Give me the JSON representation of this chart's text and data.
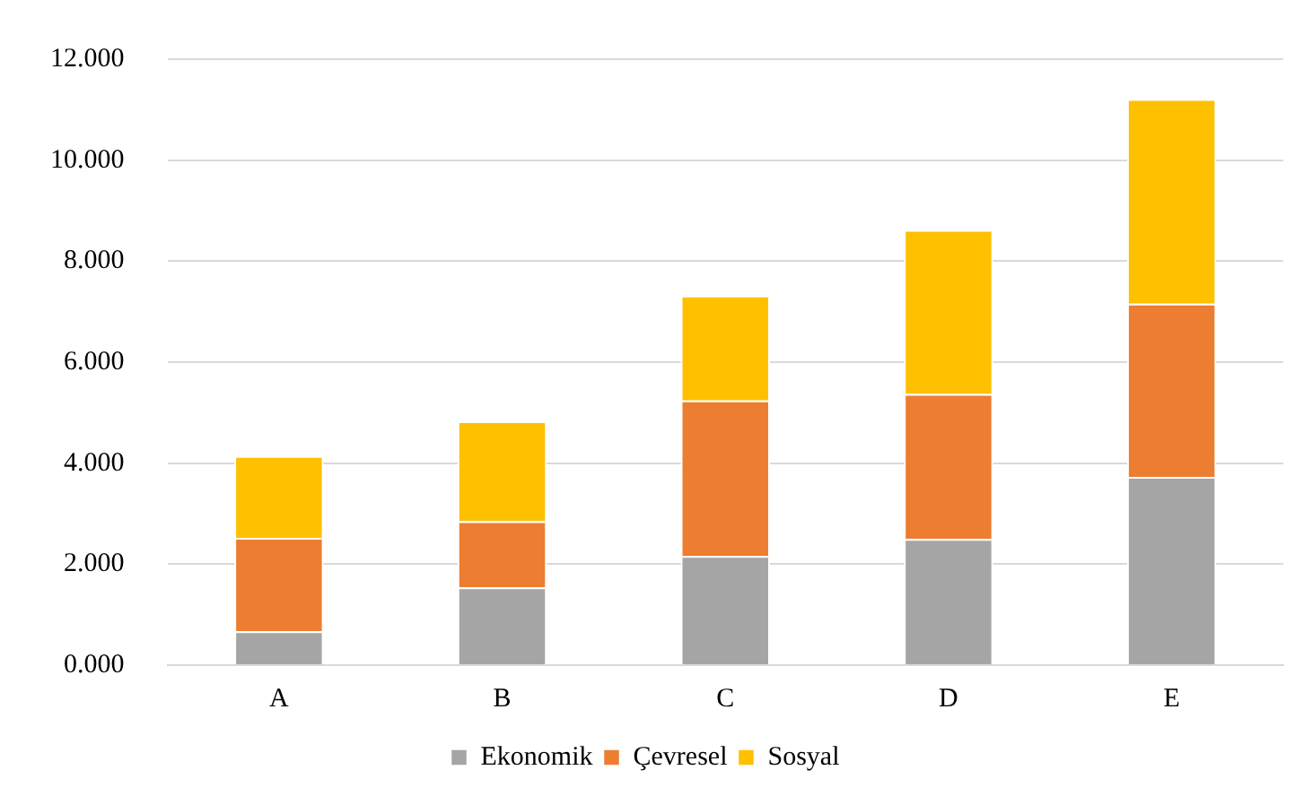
{
  "chart_data": {
    "type": "bar",
    "stacked": true,
    "categories": [
      "A",
      "B",
      "C",
      "D",
      "E"
    ],
    "series": [
      {
        "name": "Ekonomik",
        "color": "#a5a5a5",
        "values": [
          0.67,
          1.54,
          2.16,
          2.5,
          3.73
        ]
      },
      {
        "name": "Çevresel",
        "color": "#ed7d31",
        "values": [
          1.85,
          1.31,
          3.08,
          2.87,
          3.43
        ]
      },
      {
        "name": "Sosyal",
        "color": "#ffc000",
        "values": [
          1.62,
          1.98,
          2.08,
          3.25,
          4.05
        ]
      }
    ],
    "ylim": [
      0,
      12
    ],
    "yticks": [
      {
        "value": 0,
        "label": "0.000"
      },
      {
        "value": 2,
        "label": "2.000"
      },
      {
        "value": 4,
        "label": "4.000"
      },
      {
        "value": 6,
        "label": "6.000"
      },
      {
        "value": 8,
        "label": "8.000"
      },
      {
        "value": 10,
        "label": "10.000"
      },
      {
        "value": 12,
        "label": "12.000"
      }
    ],
    "grid": "y",
    "legend": "bottom"
  }
}
